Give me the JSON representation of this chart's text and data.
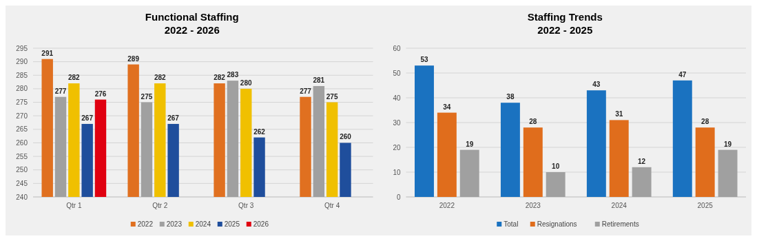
{
  "chart_data": [
    {
      "type": "bar",
      "title": "Functional Staffing",
      "subtitle": "2022 - 2026",
      "categories": [
        "Qtr 1",
        "Qtr 2",
        "Qtr 3",
        "Qtr 4"
      ],
      "series": [
        {
          "name": "2022",
          "color": "#e07020",
          "values": [
            291,
            289,
            282,
            277
          ]
        },
        {
          "name": "2023",
          "color": "#a0a0a0",
          "values": [
            277,
            275,
            283,
            281
          ]
        },
        {
          "name": "2024",
          "color": "#f0c000",
          "values": [
            282,
            282,
            280,
            275
          ]
        },
        {
          "name": "2025",
          "color": "#1f4e9c",
          "values": [
            267,
            267,
            262,
            260
          ]
        },
        {
          "name": "2026",
          "color": "#e00010",
          "values": [
            276,
            null,
            null,
            null
          ]
        }
      ],
      "ylim": [
        240,
        295
      ],
      "yticks": [
        240,
        245,
        250,
        255,
        260,
        265,
        270,
        275,
        280,
        285,
        290,
        295
      ],
      "grid": "y",
      "legend": "bottom",
      "data_labels": true
    },
    {
      "type": "bar",
      "title": "Staffing Trends",
      "subtitle": "2022 - 2025",
      "categories": [
        "2022",
        "2023",
        "2024",
        "2025"
      ],
      "series": [
        {
          "name": "Total",
          "color": "#1a72c0",
          "values": [
            53,
            38,
            43,
            47
          ]
        },
        {
          "name": "Resignations",
          "color": "#e06d1c",
          "values": [
            34,
            28,
            31,
            28
          ]
        },
        {
          "name": "Retirements",
          "color": "#a0a0a0",
          "values": [
            19,
            10,
            12,
            19
          ]
        }
      ],
      "ylim": [
        0,
        60
      ],
      "yticks": [
        0,
        10,
        20,
        30,
        40,
        50,
        60
      ],
      "grid": "y",
      "legend": "bottom",
      "data_labels": true
    }
  ]
}
